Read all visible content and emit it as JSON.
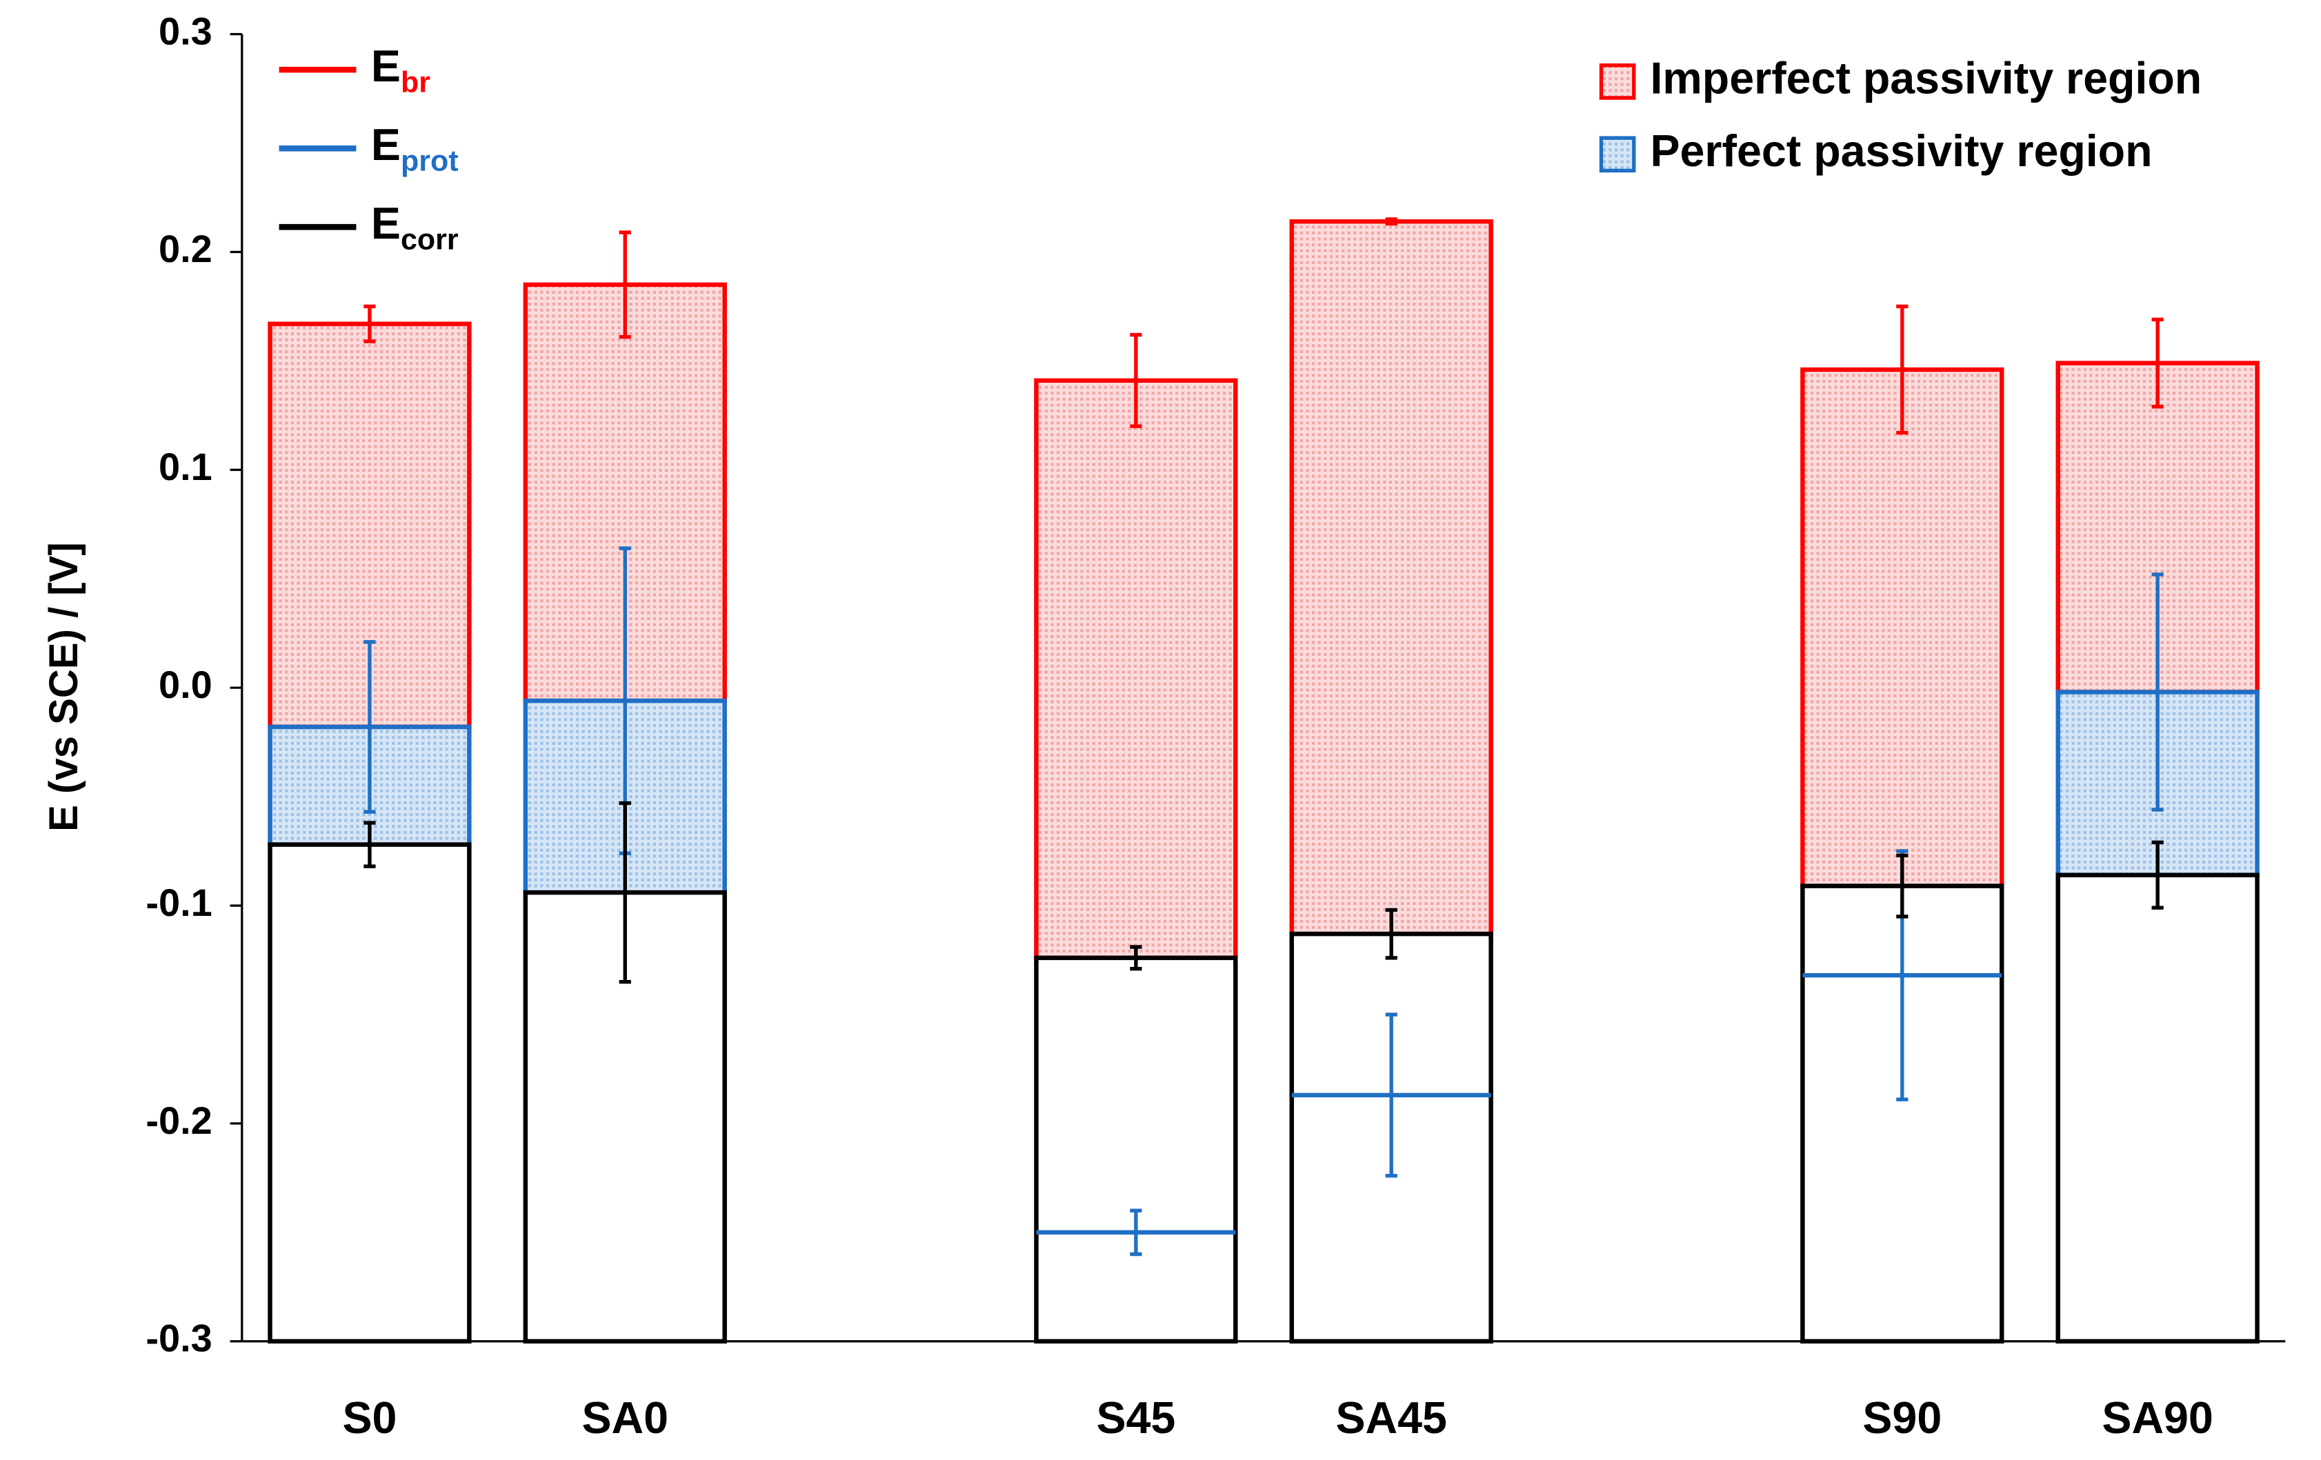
{
  "chart_data": {
    "type": "bar",
    "ylabel": "E (vs SCE) / [V]",
    "categories": [
      "S0",
      "SA0",
      null,
      "S45",
      "SA45",
      null,
      "S90",
      "SA90"
    ],
    "series": [
      {
        "name": "Ebr",
        "color": "#ff0000",
        "values": [
          0.167,
          0.185,
          null,
          0.141,
          0.214,
          null,
          0.146,
          0.149
        ],
        "errors": [
          0.008,
          0.024,
          null,
          0.021,
          0.001,
          null,
          0.029,
          0.02
        ]
      },
      {
        "name": "Eprot",
        "color": "#1f6fc5",
        "values": [
          -0.018,
          -0.006,
          null,
          -0.25,
          -0.187,
          null,
          -0.132,
          -0.002
        ],
        "errors": [
          0.039,
          0.07,
          null,
          0.01,
          0.037,
          null,
          0.057,
          0.054
        ]
      },
      {
        "name": "Ecorr",
        "color": "#000000",
        "values": [
          -0.072,
          -0.094,
          null,
          -0.124,
          -0.113,
          null,
          -0.091,
          -0.086
        ],
        "errors": [
          0.01,
          0.041,
          null,
          0.005,
          0.011,
          null,
          0.014,
          0.015
        ]
      }
    ],
    "regions": [
      {
        "name": "Imperfect passivity region",
        "color": "#ff0000"
      },
      {
        "name": "Perfect passivity region",
        "color": "#1f6fc5"
      }
    ],
    "ylim": [
      -0.3,
      0.3
    ],
    "yticks": [
      -0.3,
      -0.2,
      -0.1,
      {
        "value": 0,
        "label": "0.0"
      },
      0.1,
      0.2,
      0.3
    ]
  }
}
